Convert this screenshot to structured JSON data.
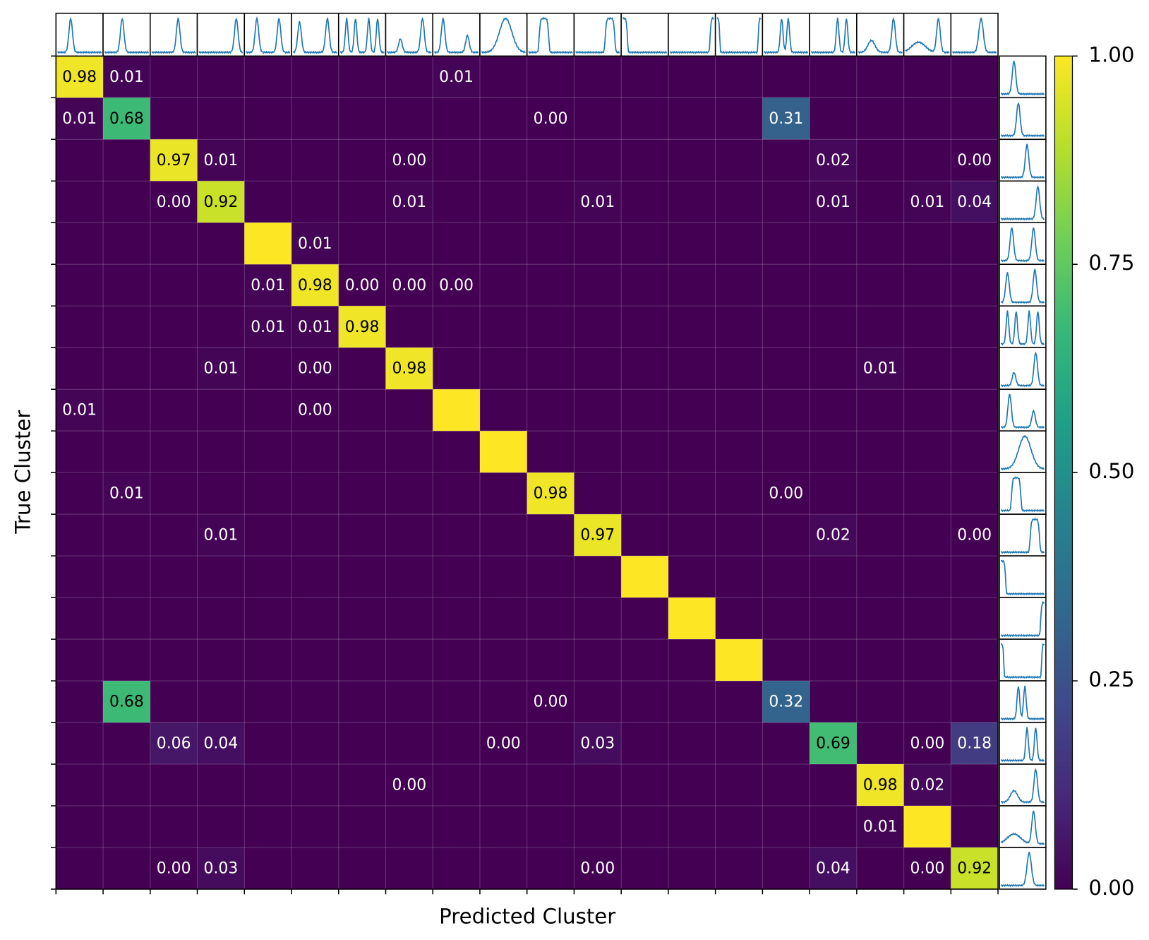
{
  "chart_data": {
    "type": "heatmap",
    "xlabel": "Predicted Cluster",
    "ylabel": "True Cluster",
    "colormap": "viridis",
    "clim": [
      0,
      1
    ],
    "cticks": [
      {
        "value": 0,
        "label": "0.00"
      },
      {
        "value": 0.25,
        "label": "0.25"
      },
      {
        "value": 0.5,
        "label": "0.50"
      },
      {
        "value": 0.75,
        "label": "0.75"
      },
      {
        "value": 1,
        "label": "1.00"
      }
    ],
    "x_categories": [
      null,
      null,
      null,
      null,
      null,
      null,
      null,
      null,
      null,
      null,
      null,
      null,
      null,
      null,
      null,
      null,
      null,
      null,
      null,
      null
    ],
    "y_categories": [
      null,
      null,
      null,
      null,
      null,
      null,
      null,
      null,
      null,
      null,
      null,
      null,
      null,
      null,
      null,
      null,
      null,
      null,
      null,
      null
    ],
    "values": [
      [
        0.98,
        0.01,
        0,
        0,
        0,
        0,
        0,
        0,
        0.01,
        0,
        0,
        0,
        0,
        0,
        0,
        0,
        0,
        0,
        0,
        0
      ],
      [
        0.01,
        0.68,
        0,
        0,
        0,
        0,
        0,
        0,
        0,
        0,
        0,
        0,
        0,
        0,
        0,
        0.31,
        0,
        0,
        0,
        0
      ],
      [
        0,
        0,
        0.97,
        0.01,
        0,
        0,
        0,
        0,
        0,
        0,
        0,
        0,
        0,
        0,
        0,
        0,
        0.02,
        0,
        0,
        0
      ],
      [
        0,
        0,
        0,
        0.92,
        0,
        0,
        0,
        0.01,
        0,
        0,
        0,
        0.01,
        0,
        0,
        0,
        0,
        0.01,
        0,
        0.01,
        0.04
      ],
      [
        0,
        0,
        0,
        0,
        1,
        0.01,
        0,
        0,
        0,
        0,
        0,
        0,
        0,
        0,
        0,
        0,
        0,
        0,
        0,
        0
      ],
      [
        0,
        0,
        0,
        0,
        0.01,
        0.98,
        0,
        0,
        0,
        0,
        0,
        0,
        0,
        0,
        0,
        0,
        0,
        0,
        0,
        0
      ],
      [
        0,
        0,
        0,
        0,
        0.01,
        0.01,
        0.98,
        0,
        0,
        0,
        0,
        0,
        0,
        0,
        0,
        0,
        0,
        0,
        0,
        0
      ],
      [
        0,
        0,
        0,
        0.01,
        0,
        0,
        0,
        0.98,
        0,
        0,
        0,
        0,
        0,
        0,
        0,
        0,
        0,
        0.01,
        0,
        0
      ],
      [
        0.01,
        0,
        0,
        0,
        0,
        0,
        0,
        0,
        1,
        0,
        0,
        0,
        0,
        0,
        0,
        0,
        0,
        0,
        0,
        0
      ],
      [
        0,
        0,
        0,
        0,
        0,
        0,
        0,
        0,
        0,
        1,
        0,
        0,
        0,
        0,
        0,
        0,
        0,
        0,
        0,
        0
      ],
      [
        0,
        0.01,
        0,
        0,
        0,
        0,
        0,
        0,
        0,
        0,
        0.98,
        0,
        0,
        0,
        0,
        0,
        0,
        0,
        0,
        0
      ],
      [
        0,
        0,
        0,
        0.01,
        0,
        0,
        0,
        0,
        0,
        0,
        0,
        0.97,
        0,
        0,
        0,
        0,
        0.02,
        0,
        0,
        0
      ],
      [
        0,
        0,
        0,
        0,
        0,
        0,
        0,
        0,
        0,
        0,
        0,
        0,
        1,
        0,
        0,
        0,
        0,
        0,
        0,
        0
      ],
      [
        0,
        0,
        0,
        0,
        0,
        0,
        0,
        0,
        0,
        0,
        0,
        0,
        0,
        1,
        0,
        0,
        0,
        0,
        0,
        0
      ],
      [
        0,
        0,
        0,
        0,
        0,
        0,
        0,
        0,
        0,
        0,
        0,
        0,
        0,
        0,
        1,
        0,
        0,
        0,
        0,
        0
      ],
      [
        0,
        0.68,
        0,
        0,
        0,
        0,
        0,
        0,
        0,
        0,
        0,
        0,
        0,
        0,
        0,
        0.32,
        0,
        0,
        0,
        0
      ],
      [
        0,
        0,
        0.06,
        0.04,
        0,
        0,
        0,
        0,
        0,
        0,
        0,
        0.03,
        0,
        0,
        0,
        0,
        0.69,
        0,
        0,
        0.18
      ],
      [
        0,
        0,
        0,
        0,
        0,
        0,
        0,
        0,
        0,
        0,
        0,
        0,
        0,
        0,
        0,
        0,
        0,
        0.98,
        0.02,
        0
      ],
      [
        0,
        0,
        0,
        0,
        0,
        0,
        0,
        0,
        0,
        0,
        0,
        0,
        0,
        0,
        0,
        0,
        0,
        0.01,
        1,
        0
      ],
      [
        0,
        0,
        0,
        0.03,
        0,
        0,
        0,
        0,
        0,
        0,
        0,
        0,
        0,
        0,
        0,
        0,
        0.04,
        0,
        0,
        0.92
      ]
    ],
    "value_labels": [
      [
        "0.98",
        "0.01",
        null,
        null,
        null,
        null,
        null,
        null,
        "0.01",
        null,
        null,
        null,
        null,
        null,
        null,
        null,
        null,
        null,
        null,
        null
      ],
      [
        "0.01",
        "0.68",
        null,
        null,
        null,
        null,
        null,
        null,
        null,
        null,
        "0.00",
        null,
        null,
        null,
        null,
        "0.31",
        null,
        null,
        null,
        null
      ],
      [
        null,
        null,
        "0.97",
        "0.01",
        null,
        null,
        null,
        "0.00",
        null,
        null,
        null,
        null,
        null,
        null,
        null,
        null,
        "0.02",
        null,
        null,
        "0.00"
      ],
      [
        null,
        null,
        "0.00",
        "0.92",
        null,
        null,
        null,
        "0.01",
        null,
        null,
        null,
        "0.01",
        null,
        null,
        null,
        null,
        "0.01",
        null,
        "0.01",
        "0.04"
      ],
      [
        null,
        null,
        null,
        null,
        null,
        "0.01",
        null,
        null,
        null,
        null,
        null,
        null,
        null,
        null,
        null,
        null,
        null,
        null,
        null,
        null
      ],
      [
        null,
        null,
        null,
        null,
        "0.01",
        "0.98",
        "0.00",
        "0.00",
        "0.00",
        null,
        null,
        null,
        null,
        null,
        null,
        null,
        null,
        null,
        null,
        null
      ],
      [
        null,
        null,
        null,
        null,
        "0.01",
        "0.01",
        "0.98",
        null,
        null,
        null,
        null,
        null,
        null,
        null,
        null,
        null,
        null,
        null,
        null,
        null
      ],
      [
        null,
        null,
        null,
        "0.01",
        null,
        "0.00",
        null,
        "0.98",
        null,
        null,
        null,
        null,
        null,
        null,
        null,
        null,
        null,
        "0.01",
        null,
        null
      ],
      [
        "0.01",
        null,
        null,
        null,
        null,
        "0.00",
        null,
        null,
        null,
        null,
        null,
        null,
        null,
        null,
        null,
        null,
        null,
        null,
        null,
        null
      ],
      [
        null,
        null,
        null,
        null,
        null,
        null,
        null,
        null,
        null,
        null,
        null,
        null,
        null,
        null,
        null,
        null,
        null,
        null,
        null,
        null
      ],
      [
        null,
        "0.01",
        null,
        null,
        null,
        null,
        null,
        null,
        null,
        null,
        "0.98",
        null,
        null,
        null,
        null,
        "0.00",
        null,
        null,
        null,
        null
      ],
      [
        null,
        null,
        null,
        "0.01",
        null,
        null,
        null,
        null,
        null,
        null,
        null,
        "0.97",
        null,
        null,
        null,
        null,
        "0.02",
        null,
        null,
        "0.00"
      ],
      [
        null,
        null,
        null,
        null,
        null,
        null,
        null,
        null,
        null,
        null,
        null,
        null,
        null,
        null,
        null,
        null,
        null,
        null,
        null,
        null
      ],
      [
        null,
        null,
        null,
        null,
        null,
        null,
        null,
        null,
        null,
        null,
        null,
        null,
        null,
        null,
        null,
        null,
        null,
        null,
        null,
        null
      ],
      [
        null,
        null,
        null,
        null,
        null,
        null,
        null,
        null,
        null,
        null,
        null,
        null,
        null,
        null,
        null,
        null,
        null,
        null,
        null,
        null
      ],
      [
        null,
        "0.68",
        null,
        null,
        null,
        null,
        null,
        null,
        null,
        null,
        "0.00",
        null,
        null,
        null,
        null,
        "0.32",
        null,
        null,
        null,
        null
      ],
      [
        null,
        null,
        "0.06",
        "0.04",
        null,
        null,
        null,
        null,
        null,
        "0.00",
        null,
        "0.03",
        null,
        null,
        null,
        null,
        "0.69",
        null,
        "0.00",
        "0.18"
      ],
      [
        null,
        null,
        null,
        null,
        null,
        null,
        null,
        "0.00",
        null,
        null,
        null,
        null,
        null,
        null,
        null,
        null,
        null,
        "0.98",
        "0.02",
        null
      ],
      [
        null,
        null,
        null,
        null,
        null,
        null,
        null,
        null,
        null,
        null,
        null,
        null,
        null,
        null,
        null,
        null,
        null,
        "0.01",
        null,
        null
      ],
      [
        null,
        null,
        "0.00",
        "0.03",
        null,
        null,
        null,
        null,
        null,
        null,
        null,
        "0.00",
        null,
        null,
        null,
        null,
        "0.04",
        null,
        "0.00",
        "0.92"
      ]
    ]
  }
}
